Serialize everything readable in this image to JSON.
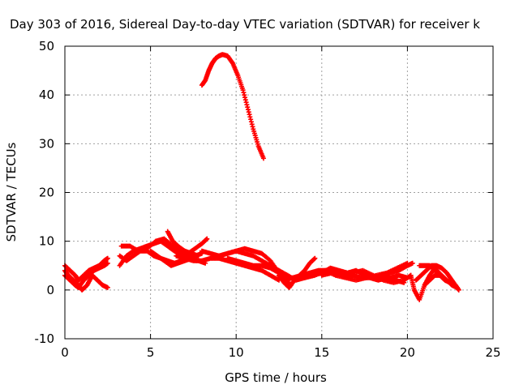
{
  "chart_data": {
    "type": "scatter",
    "title": "Day 303 of 2016, Sidereal Day-to-day VTEC variation (SDTVAR) for receiver k",
    "xlabel": "GPS time / hours",
    "ylabel": "SDTVAR / TECUs",
    "xlim": [
      0,
      25
    ],
    "ylim": [
      -10,
      50
    ],
    "xticks": [
      0,
      5,
      10,
      15,
      20,
      25
    ],
    "yticks": [
      -10,
      0,
      10,
      20,
      30,
      40,
      50
    ],
    "x_tick_labels": [
      "0",
      "5",
      "10",
      "15",
      "20",
      "25"
    ],
    "y_tick_labels": [
      "-10",
      "0",
      "10",
      "20",
      "30",
      "40",
      "50"
    ],
    "grid": true,
    "legend": "none",
    "marker": "plus",
    "color": "#ff0000",
    "series": [
      {
        "x": [
          0.0,
          0.3,
          0.6,
          0.8,
          1.1,
          1.4,
          1.7,
          2.0,
          2.3,
          2.5
        ],
        "y": [
          5,
          4,
          3,
          2,
          3,
          4,
          4.5,
          5,
          6,
          6.5
        ]
      },
      {
        "x": [
          0.0,
          0.3,
          0.6,
          0.8,
          1.1,
          1.4,
          1.7,
          2.0,
          2.3,
          2.5
        ],
        "y": [
          3,
          2,
          1,
          0.5,
          2,
          3,
          4,
          4.5,
          5,
          5.5
        ]
      },
      {
        "x": [
          0.0,
          0.2,
          0.5,
          0.8,
          1.0,
          1.3,
          1.6,
          1.9,
          2.2,
          2.5
        ],
        "y": [
          4,
          3,
          2,
          1,
          0,
          1,
          3,
          2,
          1,
          0.5
        ]
      },
      {
        "x": [
          3.2,
          3.6,
          4.0,
          4.4,
          4.8,
          5.2,
          5.6,
          6.0,
          6.4,
          6.8,
          7.2,
          7.6,
          8.0,
          8.3
        ],
        "y": [
          5,
          7,
          8,
          8.5,
          9,
          9.5,
          10,
          9,
          8,
          7,
          7.5,
          8.5,
          9.5,
          10.5
        ]
      },
      {
        "x": [
          3.2,
          3.6,
          4.0,
          4.4,
          4.8,
          5.2,
          5.6,
          6.0,
          6.4,
          6.8,
          7.2,
          7.6,
          8.0
        ],
        "y": [
          7,
          6,
          7,
          8,
          8,
          7,
          6.5,
          6,
          5.5,
          6,
          6.5,
          7,
          7.5
        ]
      },
      {
        "x": [
          3.3,
          3.8,
          4.3,
          4.8,
          5.3,
          5.8,
          6.3,
          6.7,
          7.2,
          7.7
        ],
        "y": [
          9,
          9,
          8,
          8.5,
          10,
          10.5,
          9,
          8,
          7,
          6
        ]
      },
      {
        "x": [
          5.0,
          5.4,
          5.8,
          6.2,
          6.6,
          7.0,
          7.4,
          7.8,
          8.2
        ],
        "y": [
          8,
          7,
          6,
          5,
          5.5,
          6,
          6.5,
          6,
          5.5
        ]
      },
      {
        "x": [
          6.0,
          6.3,
          6.6,
          7.0,
          7.4,
          7.8
        ],
        "y": [
          12,
          10,
          9,
          8,
          7.5,
          7
        ]
      },
      {
        "x": [
          6.5,
          7.0,
          7.5,
          8.0,
          8.5,
          9.0,
          9.5,
          10.0,
          10.5,
          11.0,
          11.5,
          12.0,
          12.5
        ],
        "y": [
          7,
          6.5,
          6,
          6,
          6.5,
          6.5,
          6,
          5.5,
          5,
          4.5,
          4,
          3,
          2
        ]
      },
      {
        "x": [
          8.0,
          8.5,
          9.0,
          9.5,
          10.0,
          10.5,
          11.0,
          11.5,
          12.0,
          12.5,
          13.0
        ],
        "y": [
          8,
          7.5,
          7,
          7.5,
          8,
          7.5,
          7,
          6,
          5,
          4,
          3
        ]
      },
      {
        "x": [
          9.0,
          9.5,
          10.0,
          10.5,
          11.0,
          11.5,
          12.0,
          12.4,
          12.8,
          13.2
        ],
        "y": [
          7,
          7.5,
          8,
          8.5,
          8,
          7.5,
          6,
          4,
          2.5,
          1
        ]
      },
      {
        "x": [
          9.5,
          10.0,
          10.5,
          11.0,
          11.5,
          12.0,
          12.5,
          13.0
        ],
        "y": [
          6.5,
          6,
          5.5,
          5,
          5,
          4.5,
          3.5,
          2
        ]
      },
      {
        "x": [
          12.5,
          12.8,
          13.1,
          13.4,
          13.7,
          14.0,
          14.3,
          14.6
        ],
        "y": [
          3,
          1.5,
          0.5,
          2,
          3,
          4,
          5.5,
          6.5
        ]
      },
      {
        "x": [
          12.8,
          13.3,
          13.8,
          14.3,
          14.8,
          15.3,
          15.8,
          16.3,
          16.8,
          17.3,
          17.8,
          18.3,
          18.8,
          19.3,
          19.8
        ],
        "y": [
          2,
          2.5,
          3,
          3.5,
          4,
          4,
          3.5,
          3,
          3,
          2.5,
          2.5,
          2,
          2.5,
          2,
          1.5
        ]
      },
      {
        "x": [
          13.0,
          13.5,
          14.0,
          14.5,
          15.0,
          15.5,
          16.0,
          16.5,
          17.0,
          17.5,
          18.0,
          18.5,
          19.0,
          19.5,
          20.0
        ],
        "y": [
          3,
          2,
          2.5,
          3,
          3.5,
          4.5,
          4,
          3.5,
          4,
          3,
          2.5,
          3,
          2.5,
          3,
          2.5
        ]
      },
      {
        "x": [
          14.0,
          14.6,
          15.2,
          15.8,
          16.4,
          17.0,
          17.6,
          18.2,
          18.8,
          19.4,
          20.0
        ],
        "y": [
          2.5,
          3,
          4,
          3,
          2.5,
          2,
          2.5,
          3,
          3.5,
          4.5,
          5.5
        ]
      },
      {
        "x": [
          15.0,
          15.6,
          16.2,
          16.8,
          17.4,
          18.0,
          18.6,
          19.2,
          19.8,
          20.2
        ],
        "y": [
          3,
          3.5,
          3,
          3.5,
          4,
          3,
          2,
          1.5,
          2,
          3
        ]
      },
      {
        "x": [
          18.5,
          19.0,
          19.5,
          20.0,
          20.3
        ],
        "y": [
          3,
          3.5,
          4,
          5,
          5.5
        ]
      },
      {
        "x": [
          20.2,
          20.4,
          20.7,
          21.0,
          21.3,
          21.6,
          22.0,
          22.3,
          22.6,
          22.9
        ],
        "y": [
          3,
          0,
          -2,
          1,
          3,
          4.5,
          3,
          2,
          1,
          0.5
        ]
      },
      {
        "x": [
          20.5,
          20.8,
          21.1,
          21.4,
          21.7,
          22.0,
          22.3,
          22.6,
          22.9
        ],
        "y": [
          2,
          3,
          4,
          5,
          5,
          4.5,
          3.5,
          2,
          0.5
        ]
      },
      {
        "x": [
          21.0,
          21.3,
          21.6,
          21.9,
          22.2,
          22.5,
          22.8
        ],
        "y": [
          1,
          2,
          3,
          3,
          2,
          1.5,
          1
        ]
      },
      {
        "x": [
          20.7,
          21.0,
          21.3,
          21.6,
          21.9,
          22.2,
          22.5,
          22.8,
          23.0
        ],
        "y": [
          5,
          5,
          5,
          4,
          3,
          2,
          1.5,
          1,
          0
        ]
      },
      {
        "x": [
          8.0,
          8.2,
          8.4,
          8.6,
          8.8,
          9.0,
          9.2,
          9.5,
          9.8,
          10.1,
          10.4,
          10.7,
          11.0,
          11.3,
          11.6
        ],
        "y": [
          42,
          43,
          45,
          46.5,
          47.5,
          48,
          48.3,
          48,
          46.5,
          44,
          41,
          37,
          33,
          29.5,
          27
        ]
      }
    ]
  }
}
